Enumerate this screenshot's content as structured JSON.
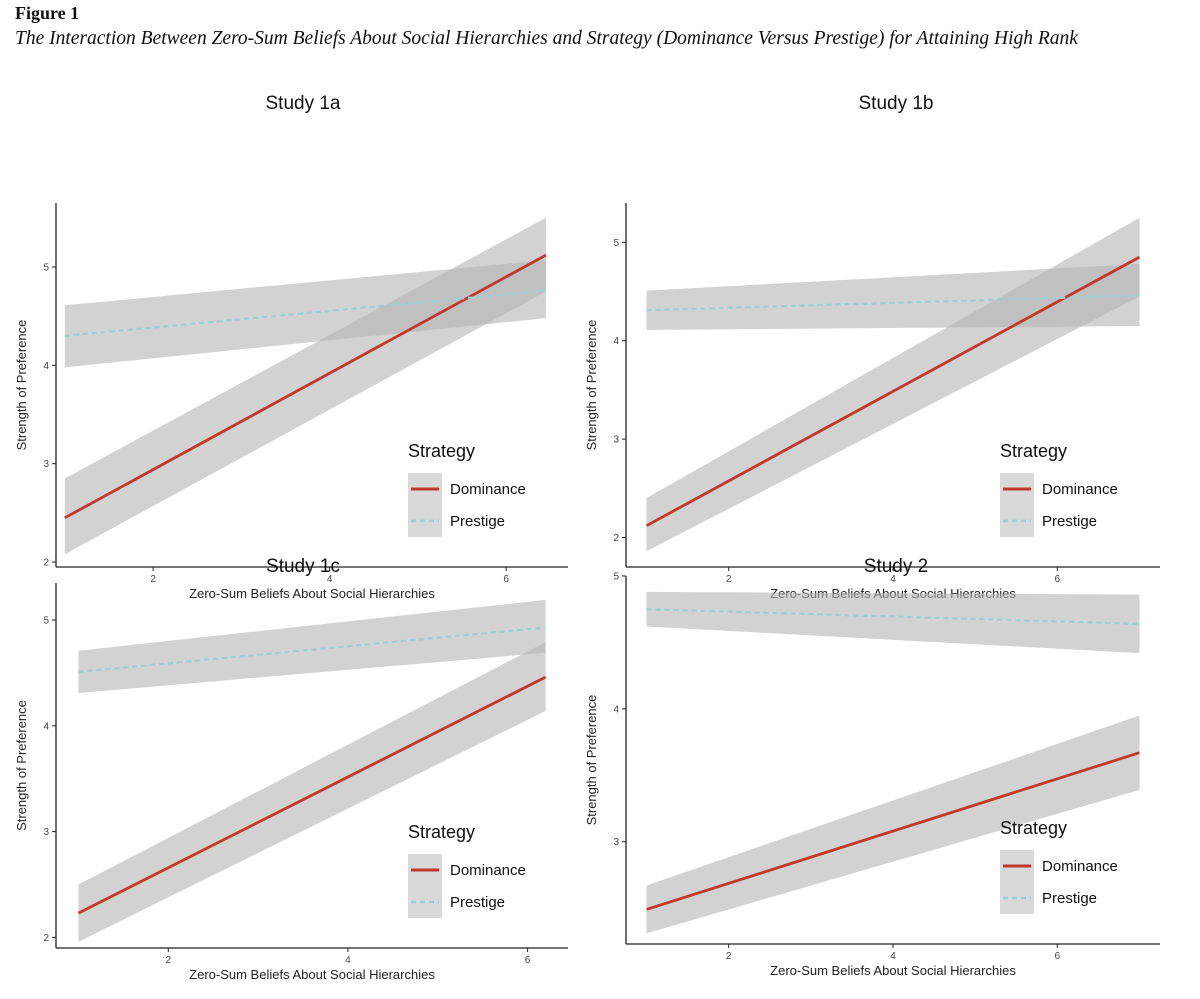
{
  "figure": {
    "label": "Figure 1",
    "caption": "The Interaction Between Zero-Sum Beliefs About Social Hierarchies and Strategy (Dominance Versus Prestige) for Attaining High Rank"
  },
  "colors": {
    "dominance": "#c0392b",
    "prestige": "#96cfd6",
    "ribbon": "#b4b4b4",
    "axis": "#222222",
    "legend_key_bg": "#d9d9d9"
  },
  "chart_data": [
    {
      "type": "line",
      "title": "Study 1a",
      "xlabel": "Zero-Sum Beliefs About Social Hierarchies",
      "ylabel": "Strength of Preference",
      "xlim": [
        0.9,
        6.7
      ],
      "ylim": [
        1.95,
        5.65
      ],
      "xticks": [
        2,
        4,
        6
      ],
      "yticks": [
        2,
        3,
        4,
        5
      ],
      "x_range": [
        1.0,
        6.45
      ],
      "legend": {
        "title": "Strategy",
        "entries": [
          "Dominance",
          "Prestige"
        ],
        "position": "bottom-right"
      },
      "series": [
        {
          "name": "Dominance",
          "style": "solid",
          "y": [
            2.45,
            5.12
          ],
          "ci_lower": [
            2.08,
            4.75
          ],
          "ci_upper": [
            2.85,
            5.5
          ]
        },
        {
          "name": "Prestige",
          "style": "dashed",
          "y": [
            4.3,
            4.76
          ],
          "ci_lower": [
            3.98,
            4.48
          ],
          "ci_upper": [
            4.61,
            5.07
          ]
        }
      ]
    },
    {
      "type": "line",
      "title": "Study 1b",
      "xlabel": "Zero-Sum Beliefs About Social Hierarchies",
      "ylabel": "Strength of Preference",
      "xlim": [
        0.75,
        7.25
      ],
      "ylim": [
        1.7,
        5.4
      ],
      "xticks": [
        2,
        4,
        6
      ],
      "yticks": [
        2,
        3,
        4,
        5
      ],
      "x_range": [
        1.0,
        7.0
      ],
      "legend": {
        "title": "Strategy",
        "entries": [
          "Dominance",
          "Prestige"
        ],
        "position": "bottom-right"
      },
      "series": [
        {
          "name": "Dominance",
          "style": "solid",
          "y": [
            2.12,
            4.85
          ],
          "ci_lower": [
            1.86,
            4.45
          ],
          "ci_upper": [
            2.4,
            5.25
          ]
        },
        {
          "name": "Prestige",
          "style": "dashed",
          "y": [
            4.31,
            4.46
          ],
          "ci_lower": [
            4.11,
            4.15
          ],
          "ci_upper": [
            4.51,
            4.78
          ]
        }
      ]
    },
    {
      "type": "line",
      "title": "Study 1c",
      "xlabel": "Zero-Sum Beliefs About Social Hierarchies",
      "ylabel": "Strength of Preference",
      "xlim": [
        0.75,
        6.45
      ],
      "ylim": [
        1.9,
        5.35
      ],
      "xticks": [
        2,
        4,
        6
      ],
      "yticks": [
        2,
        3,
        4,
        5
      ],
      "x_range": [
        1.0,
        6.2
      ],
      "legend": {
        "title": "Strategy",
        "entries": [
          "Dominance",
          "Prestige"
        ],
        "position": "bottom-right"
      },
      "series": [
        {
          "name": "Dominance",
          "style": "solid",
          "y": [
            2.23,
            4.46
          ],
          "ci_lower": [
            1.96,
            4.14
          ],
          "ci_upper": [
            2.5,
            4.79
          ]
        },
        {
          "name": "Prestige",
          "style": "dashed",
          "y": [
            4.51,
            4.93
          ],
          "ci_lower": [
            4.31,
            4.69
          ],
          "ci_upper": [
            4.71,
            5.19
          ]
        }
      ]
    },
    {
      "type": "line",
      "title": "Study 2",
      "xlabel": "Zero-Sum Beliefs About Social Hierarchies",
      "ylabel": "Strength of Preference",
      "xlim": [
        0.75,
        7.25
      ],
      "ylim": [
        2.23,
        5.0
      ],
      "xticks": [
        2,
        4,
        6
      ],
      "yticks": [
        3,
        4,
        5
      ],
      "x_range": [
        1.0,
        7.0
      ],
      "legend": {
        "title": "Strategy",
        "entries": [
          "Dominance",
          "Prestige"
        ],
        "position": "bottom-right"
      },
      "series": [
        {
          "name": "Dominance",
          "style": "solid",
          "y": [
            2.49,
            3.67
          ],
          "ci_lower": [
            2.31,
            3.39
          ],
          "ci_upper": [
            2.67,
            3.95
          ]
        },
        {
          "name": "Prestige",
          "style": "dashed",
          "y": [
            4.75,
            4.64
          ],
          "ci_lower": [
            4.62,
            4.42
          ],
          "ci_upper": [
            4.88,
            4.86
          ]
        }
      ]
    }
  ]
}
